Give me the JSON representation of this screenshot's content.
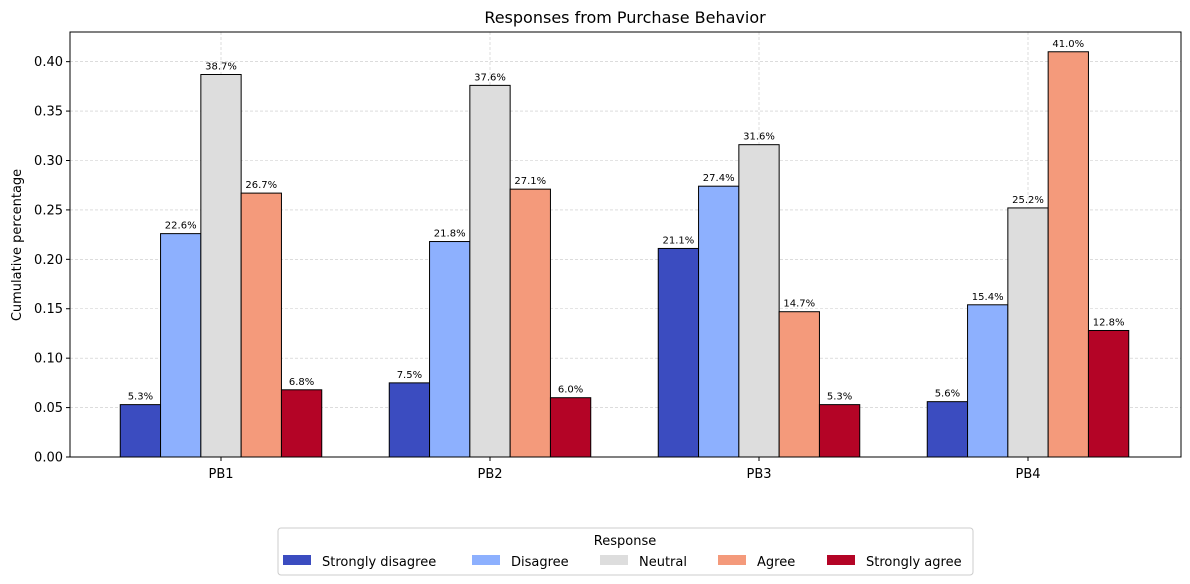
{
  "chart_data": {
    "type": "bar",
    "title": "Responses from Purchase Behavior",
    "xlabel": "",
    "ylabel": "Cumulative percentage",
    "categories": [
      "PB1",
      "PB2",
      "PB3",
      "PB4"
    ],
    "series": [
      {
        "name": "Strongly disagree",
        "color": "#3b4cc0",
        "values": [
          0.053,
          0.075,
          0.211,
          0.056
        ],
        "labels": [
          "5.3%",
          "7.5%",
          "21.1%",
          "5.6%"
        ]
      },
      {
        "name": "Disagree",
        "color": "#8db0fe",
        "values": [
          0.226,
          0.218,
          0.274,
          0.154
        ],
        "labels": [
          "22.6%",
          "21.8%",
          "27.4%",
          "15.4%"
        ]
      },
      {
        "name": "Neutral",
        "color": "#dddddd",
        "values": [
          0.387,
          0.376,
          0.316,
          0.252
        ],
        "labels": [
          "38.7%",
          "37.6%",
          "31.6%",
          "25.2%"
        ]
      },
      {
        "name": "Agree",
        "color": "#f49a7b",
        "values": [
          0.267,
          0.271,
          0.147,
          0.41
        ],
        "labels": [
          "26.7%",
          "27.1%",
          "14.7%",
          "41.0%"
        ]
      },
      {
        "name": "Strongly agree",
        "color": "#b40426",
        "values": [
          0.068,
          0.06,
          0.053,
          0.128
        ],
        "labels": [
          "6.8%",
          "6.0%",
          "5.3%",
          "12.8%"
        ]
      }
    ],
    "ylim": [
      0,
      0.43
    ],
    "yticks": [
      "0.00",
      "0.05",
      "0.10",
      "0.15",
      "0.20",
      "0.25",
      "0.30",
      "0.35",
      "0.40"
    ],
    "grid": true,
    "legend": {
      "title": "Response",
      "placement": "bottom-center"
    }
  }
}
